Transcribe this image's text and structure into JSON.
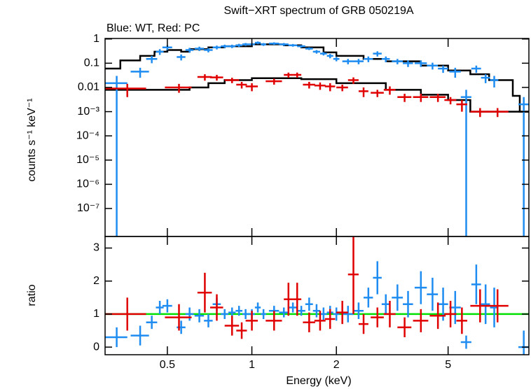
{
  "chart_data": [
    {
      "type": "errorbar",
      "title": "Swift−XRT spectrum of GRB 050219A",
      "subtitle": "Blue: WT, Red: PC",
      "ylabel": "counts s⁻¹ keV⁻¹",
      "xscale": "log",
      "yscale": "log",
      "xlim": [
        0.3,
        9.7
      ],
      "ylim": [
        7e-09,
        1.05
      ],
      "yticks": [
        1,
        0.1,
        0.01,
        {
          "value": 0.001,
          "label": "10⁻³"
        },
        {
          "value": 0.0001,
          "label": "10⁻⁴"
        },
        {
          "value": 1e-05,
          "label": "10⁻⁵"
        },
        {
          "value": 1e-06,
          "label": "10⁻⁶"
        },
        {
          "value": 1e-07,
          "label": "10⁻⁷"
        }
      ],
      "series": [
        {
          "name": "WT",
          "color": "#1e8cf0",
          "x": [
            0.33,
            0.4,
            0.44,
            0.47,
            0.5,
            0.56,
            0.6,
            0.65,
            0.7,
            0.75,
            0.8,
            0.85,
            0.9,
            0.95,
            1.0,
            1.05,
            1.1,
            1.2,
            1.3,
            1.4,
            1.5,
            1.6,
            1.7,
            1.8,
            1.9,
            2.0,
            2.2,
            2.4,
            2.6,
            2.8,
            3.0,
            3.3,
            3.6,
            4.0,
            4.4,
            4.8,
            5.3,
            5.8,
            6.3,
            6.8,
            7.3,
            9.3
          ],
          "xerr": [
            0.03,
            0.03,
            0.02,
            0.015,
            0.02,
            0.02,
            0.02,
            0.025,
            0.025,
            0.025,
            0.025,
            0.025,
            0.025,
            0.025,
            0.025,
            0.025,
            0.025,
            0.05,
            0.05,
            0.05,
            0.05,
            0.05,
            0.05,
            0.05,
            0.05,
            0.05,
            0.1,
            0.1,
            0.1,
            0.1,
            0.1,
            0.15,
            0.15,
            0.2,
            0.2,
            0.2,
            0.25,
            0.25,
            0.25,
            0.25,
            0.25,
            0.4
          ],
          "values": [
            0.015,
            0.045,
            0.15,
            0.3,
            0.45,
            0.18,
            0.35,
            0.4,
            0.35,
            0.45,
            0.5,
            0.5,
            0.55,
            0.6,
            0.6,
            0.7,
            0.6,
            0.65,
            0.6,
            0.55,
            0.5,
            0.4,
            0.3,
            0.25,
            0.2,
            0.15,
            0.12,
            0.12,
            0.15,
            0.25,
            0.15,
            0.12,
            0.1,
            0.1,
            0.08,
            0.06,
            0.045,
            0.004,
            0.06,
            0.025,
            0.02,
            0.002
          ],
          "yerr": [
            0.015,
            0.02,
            0.05,
            0.08,
            0.1,
            0.05,
            0.08,
            0.08,
            0.07,
            0.08,
            0.08,
            0.08,
            0.08,
            0.08,
            0.08,
            0.09,
            0.08,
            0.08,
            0.08,
            0.07,
            0.06,
            0.05,
            0.05,
            0.04,
            0.04,
            0.03,
            0.03,
            0.03,
            0.04,
            0.06,
            0.04,
            0.03,
            0.03,
            0.03,
            0.025,
            0.02,
            0.02,
            0.004,
            0.02,
            0.01,
            0.01,
            0.002
          ]
        },
        {
          "name": "PC",
          "color": "#e00000",
          "x": [
            0.36,
            0.55,
            0.68,
            0.75,
            0.85,
            0.92,
            1.0,
            1.2,
            1.35,
            1.45,
            1.6,
            1.75,
            1.9,
            2.1,
            2.3,
            2.5,
            2.8,
            3.1,
            3.5,
            4.0,
            4.6,
            5.1,
            5.6,
            6.5,
            7.5
          ],
          "xerr": [
            0.06,
            0.06,
            0.04,
            0.04,
            0.05,
            0.04,
            0.05,
            0.08,
            0.05,
            0.05,
            0.08,
            0.08,
            0.08,
            0.1,
            0.1,
            0.1,
            0.15,
            0.15,
            0.2,
            0.25,
            0.3,
            0.25,
            0.25,
            0.5,
            0.7
          ],
          "values": [
            0.009,
            0.01,
            0.027,
            0.026,
            0.02,
            0.013,
            0.011,
            0.018,
            0.033,
            0.033,
            0.013,
            0.012,
            0.011,
            0.01,
            0.02,
            0.007,
            0.006,
            0.008,
            0.004,
            0.004,
            0.004,
            0.003,
            0.002,
            0.001,
            0.001
          ],
          "yerr": [
            0.005,
            0.004,
            0.008,
            0.007,
            0.005,
            0.004,
            0.004,
            0.005,
            0.008,
            0.008,
            0.004,
            0.004,
            0.004,
            0.003,
            0.006,
            0.003,
            0.002,
            0.003,
            0.0015,
            0.0015,
            0.0015,
            0.001,
            0.001,
            0.0004,
            0.0004
          ]
        }
      ],
      "models": [
        {
          "color": "#000000",
          "x": [
            0.3,
            0.34,
            0.4,
            0.45,
            0.5,
            0.56,
            0.6,
            0.7,
            0.8,
            1.0,
            1.3,
            1.5,
            1.8,
            2.0,
            2.5,
            3.0,
            4.0,
            5.0,
            6.0,
            7.0,
            8.5,
            9.0
          ],
          "values": [
            0.06,
            0.13,
            0.2,
            0.3,
            0.35,
            0.3,
            0.38,
            0.45,
            0.5,
            0.6,
            0.55,
            0.45,
            0.28,
            0.2,
            0.15,
            0.12,
            0.08,
            0.05,
            0.035,
            0.02,
            0.0045,
            0.001
          ]
        },
        {
          "color": "#000000",
          "x": [
            0.3,
            0.6,
            0.7,
            0.8,
            1.0,
            1.5,
            2.0,
            3.0,
            4.0,
            5.0,
            6.0
          ],
          "values": [
            0.008,
            0.01,
            0.015,
            0.02,
            0.024,
            0.022,
            0.015,
            0.008,
            0.005,
            0.003,
            0.001
          ]
        }
      ]
    },
    {
      "type": "errorbar",
      "xlabel": "Energy (keV)",
      "ylabel": "ratio",
      "xscale": "log",
      "xlim": [
        0.3,
        9.7
      ],
      "ylim": [
        -0.23,
        3.35
      ],
      "xticks": [
        0.5,
        1,
        2,
        5
      ],
      "yticks": [
        0,
        1,
        2,
        3
      ],
      "reference_line": {
        "value": 1,
        "color": "#00e000"
      },
      "series": [
        {
          "name": "WT",
          "color": "#1e8cf0",
          "x": [
            0.33,
            0.4,
            0.44,
            0.47,
            0.5,
            0.56,
            0.6,
            0.65,
            0.7,
            0.75,
            0.8,
            0.85,
            0.9,
            0.95,
            1.0,
            1.05,
            1.1,
            1.2,
            1.3,
            1.4,
            1.5,
            1.6,
            1.7,
            1.8,
            1.9,
            2.0,
            2.2,
            2.4,
            2.6,
            2.8,
            3.0,
            3.3,
            3.6,
            4.0,
            4.4,
            4.8,
            5.3,
            5.8,
            6.3,
            6.8,
            7.3,
            9.3
          ],
          "xerr": [
            0.03,
            0.03,
            0.02,
            0.015,
            0.02,
            0.02,
            0.02,
            0.025,
            0.025,
            0.025,
            0.025,
            0.025,
            0.025,
            0.025,
            0.025,
            0.025,
            0.025,
            0.05,
            0.05,
            0.05,
            0.05,
            0.05,
            0.05,
            0.05,
            0.05,
            0.05,
            0.1,
            0.1,
            0.1,
            0.1,
            0.1,
            0.15,
            0.15,
            0.2,
            0.2,
            0.2,
            0.25,
            0.25,
            0.25,
            0.25,
            0.25,
            0.4
          ],
          "values": [
            0.3,
            0.35,
            0.75,
            1.2,
            1.25,
            0.6,
            1.0,
            0.95,
            0.8,
            1.3,
            1.0,
            1.05,
            1.1,
            1.0,
            1.0,
            1.2,
            1.0,
            1.1,
            1.05,
            1.2,
            1.1,
            1.3,
            1.1,
            1.0,
            1.05,
            1.0,
            1.0,
            1.1,
            1.5,
            2.1,
            1.3,
            1.5,
            1.3,
            1.8,
            1.6,
            1.3,
            1.2,
            0.15,
            1.9,
            1.3,
            1.2,
            0.0
          ],
          "yerr": [
            0.3,
            0.3,
            0.2,
            0.2,
            0.2,
            0.2,
            0.2,
            0.2,
            0.2,
            0.2,
            0.15,
            0.15,
            0.15,
            0.15,
            0.15,
            0.15,
            0.15,
            0.15,
            0.15,
            0.15,
            0.15,
            0.2,
            0.2,
            0.2,
            0.2,
            0.2,
            0.25,
            0.25,
            0.3,
            0.5,
            0.3,
            0.4,
            0.4,
            0.5,
            0.5,
            0.5,
            0.5,
            0.2,
            0.6,
            0.6,
            0.6,
            0.5
          ]
        },
        {
          "name": "PC",
          "color": "#e00000",
          "x": [
            0.36,
            0.55,
            0.68,
            0.75,
            0.85,
            0.92,
            1.0,
            1.2,
            1.35,
            1.45,
            1.6,
            1.75,
            1.9,
            2.1,
            2.3,
            2.5,
            2.8,
            3.1,
            3.5,
            4.0,
            4.6,
            5.1,
            5.6,
            6.5,
            7.5
          ],
          "xerr": [
            0.06,
            0.06,
            0.04,
            0.04,
            0.05,
            0.04,
            0.05,
            0.08,
            0.05,
            0.05,
            0.08,
            0.08,
            0.08,
            0.1,
            0.1,
            0.1,
            0.15,
            0.15,
            0.2,
            0.25,
            0.3,
            0.25,
            0.25,
            0.5,
            0.7
          ],
          "values": [
            1.0,
            0.9,
            1.65,
            1.2,
            0.65,
            0.5,
            0.8,
            0.8,
            1.45,
            1.45,
            0.75,
            0.8,
            0.85,
            1.05,
            2.2,
            0.7,
            0.9,
            1.0,
            0.6,
            0.8,
            0.95,
            1.0,
            0.8,
            1.25,
            1.25
          ],
          "yerr": [
            0.5,
            0.4,
            0.6,
            0.4,
            0.3,
            0.25,
            0.3,
            0.3,
            0.5,
            0.5,
            0.3,
            0.3,
            0.3,
            0.35,
            1.2,
            0.3,
            0.3,
            0.4,
            0.3,
            0.35,
            0.4,
            0.4,
            0.4,
            0.5,
            0.5
          ]
        }
      ]
    }
  ]
}
